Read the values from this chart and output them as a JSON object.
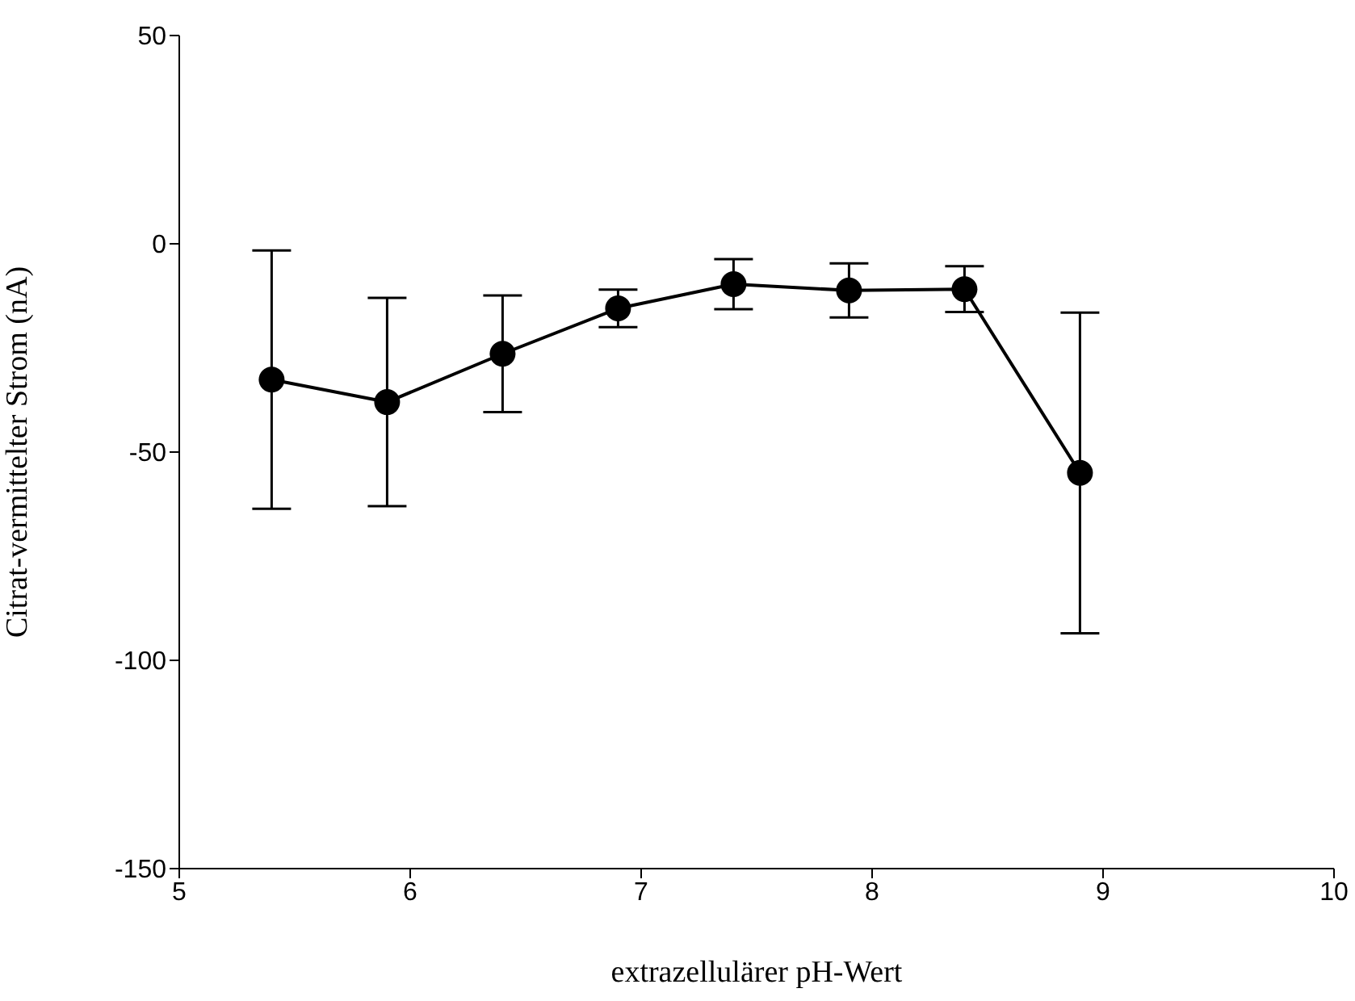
{
  "chart_data": {
    "type": "line",
    "xlabel": "extrazellulärer pH-Wert",
    "ylabel": "Citrat-vermittelter Strom (nA)",
    "x": [
      5.4,
      5.9,
      6.4,
      6.9,
      7.4,
      7.9,
      8.4,
      8.9
    ],
    "series": [
      {
        "color": "#000000",
        "values": [
          -32.6,
          -38,
          -26.4,
          -15.5,
          -9.7,
          -11.2,
          -10.9,
          -55
        ],
        "errors": [
          31,
          25,
          14,
          4.5,
          6,
          6.5,
          5.5,
          38.5
        ]
      }
    ],
    "xlim": [
      5,
      10
    ],
    "xticks": [
      5,
      6,
      7,
      8,
      9,
      10
    ],
    "ylim": [
      -150,
      50
    ],
    "yticks": [
      -150,
      -100,
      -50,
      0,
      50
    ],
    "grid": false,
    "legend": false,
    "marker": "circle",
    "line_style": "solid"
  }
}
